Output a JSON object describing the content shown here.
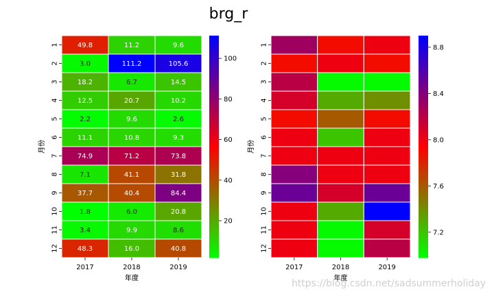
{
  "figure": {
    "title": "brg_r",
    "watermark": "https://blog.csdn.net/sadsummerholiday"
  },
  "chart_data": [
    {
      "type": "heatmap",
      "annotated": true,
      "xlabel": "年度",
      "ylabel": "月份",
      "x_categories": [
        "2017",
        "2018",
        "2019"
      ],
      "y_categories": [
        "1",
        "2",
        "3",
        "4",
        "5",
        "6",
        "7",
        "8",
        "9",
        "10",
        "11",
        "12"
      ],
      "values": [
        [
          49.8,
          11.2,
          9.6
        ],
        [
          3.0,
          111.2,
          105.6
        ],
        [
          18.2,
          6.7,
          14.5
        ],
        [
          12.5,
          20.7,
          10.2
        ],
        [
          2.2,
          9.6,
          2.6
        ],
        [
          11.1,
          10.8,
          9.3
        ],
        [
          74.9,
          71.2,
          73.8
        ],
        [
          7.1,
          41.1,
          31.8
        ],
        [
          37.7,
          40.4,
          84.4
        ],
        [
          1.8,
          6.0,
          20.8
        ],
        [
          3.4,
          9.9,
          8.6
        ],
        [
          48.3,
          16.0,
          40.8
        ]
      ],
      "colormap": "brg_r",
      "vmin": 1.8,
      "vmax": 111.2,
      "colorbar_ticks": [
        "20",
        "40",
        "60",
        "80",
        "100"
      ],
      "colorbar_tick_values": [
        20,
        40,
        60,
        80,
        100
      ]
    },
    {
      "type": "heatmap",
      "annotated": false,
      "xlabel": "年度",
      "ylabel": "月份",
      "x_categories": [
        "2017",
        "2018",
        "2019"
      ],
      "y_categories": [
        "1",
        "2",
        "3",
        "4",
        "5",
        "6",
        "7",
        "8",
        "9",
        "10",
        "11",
        "12"
      ],
      "values": [
        [
          8.3,
          7.9,
          8.0
        ],
        [
          7.9,
          8.0,
          7.9
        ],
        [
          8.2,
          7.0,
          7.0
        ],
        [
          8.1,
          7.3,
          7.4
        ],
        [
          7.9,
          7.6,
          7.9
        ],
        [
          8.0,
          7.2,
          8.0
        ],
        [
          8.0,
          8.0,
          8.0
        ],
        [
          8.4,
          8.0,
          8.0
        ],
        [
          8.5,
          8.1,
          8.5
        ],
        [
          8.0,
          7.3,
          8.9
        ],
        [
          8.0,
          7.0,
          8.1
        ],
        [
          8.0,
          7.0,
          8.2
        ]
      ],
      "colormap": "brg_r",
      "vmin": 6.98,
      "vmax": 8.9,
      "colorbar_ticks": [
        "7.2",
        "7.6",
        "8.0",
        "8.4",
        "8.8"
      ],
      "colorbar_tick_values": [
        7.2,
        7.6,
        8.0,
        8.4,
        8.8
      ]
    }
  ]
}
